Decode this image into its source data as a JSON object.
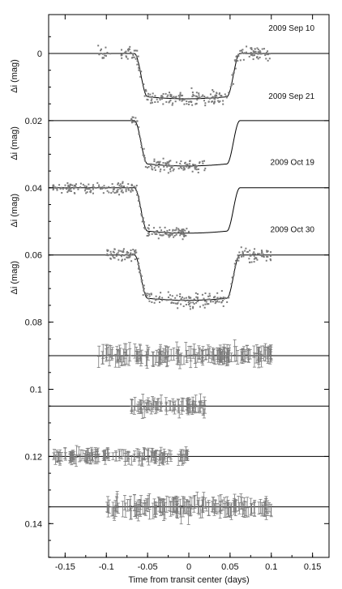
{
  "chart_data": {
    "type": "scatter",
    "title": "",
    "xlabel": "Time from transit center (days)",
    "ylabel": "Δi (mag)",
    "xlim": [
      -0.17,
      0.17
    ],
    "ylim": [
      0.155,
      -0.01
    ],
    "y_inverted": true,
    "grid": false,
    "x_ticks": [
      {
        "value": -0.15,
        "label": "-0.15"
      },
      {
        "value": -0.1,
        "label": "-0.1"
      },
      {
        "value": -0.05,
        "label": "-0.05"
      },
      {
        "value": 0,
        "label": "0"
      },
      {
        "value": 0.05,
        "label": "0.05"
      },
      {
        "value": 0.1,
        "label": "0.1"
      },
      {
        "value": 0.15,
        "label": "0.15"
      }
    ],
    "y_ticks": [
      {
        "value": 0,
        "label": "0"
      },
      {
        "value": 0.02,
        "label": "0.02"
      },
      {
        "value": 0.04,
        "label": "0.04"
      },
      {
        "value": 0.06,
        "label": "0.06"
      },
      {
        "value": 0.08,
        "label": "0.08"
      },
      {
        "value": 0.1,
        "label": "0.1"
      },
      {
        "value": 0.12,
        "label": "0.12"
      },
      {
        "value": 0.14,
        "label": "0.14"
      }
    ],
    "ylabel_positions": [
      0,
      0.02,
      0.04,
      0.06
    ],
    "transit_model": {
      "depth": 0.0135,
      "contact_1": -0.066,
      "contact_2": -0.05,
      "contact_3": 0.046,
      "contact_4": 0.062
    },
    "light_curves": [
      {
        "date": "2009 Sep 10",
        "offset": 0,
        "x_range": [
          -0.11,
          0.1
        ],
        "gap": [
          -0.095,
          -0.082
        ],
        "scatter": 0.0028,
        "model_x": [
          -0.17,
          0.17
        ]
      },
      {
        "date": "2009 Sep 21",
        "offset": 0.02,
        "x_range": [
          -0.07,
          0.02
        ],
        "gap": null,
        "scatter": 0.0025,
        "model_x": [
          -0.17,
          0.17
        ]
      },
      {
        "date": "2009 Oct 19",
        "offset": 0.04,
        "x_range": [
          -0.165,
          0.0
        ],
        "gap": null,
        "scatter": 0.0022,
        "model_x": [
          -0.17,
          0.17
        ]
      },
      {
        "date": "2009 Oct 30",
        "offset": 0.06,
        "x_range": [
          -0.1,
          0.1
        ],
        "gap": null,
        "scatter": 0.0027,
        "model_x": [
          -0.17,
          0.17
        ]
      }
    ],
    "residuals": [
      {
        "offset": 0.09,
        "x_range": [
          -0.11,
          0.1
        ],
        "scatter": 0.0025,
        "error": 0.0018
      },
      {
        "offset": 0.105,
        "x_range": [
          -0.07,
          0.02
        ],
        "scatter": 0.0022,
        "error": 0.0015
      },
      {
        "offset": 0.12,
        "x_range": [
          -0.165,
          0.0
        ],
        "scatter": 0.0018,
        "error": 0.0014
      },
      {
        "offset": 0.135,
        "x_range": [
          -0.1,
          0.1
        ],
        "scatter": 0.0026,
        "error": 0.0019
      }
    ],
    "colors": {
      "points": "#7a7a7a",
      "model": "#000000",
      "axes": "#000000"
    }
  }
}
